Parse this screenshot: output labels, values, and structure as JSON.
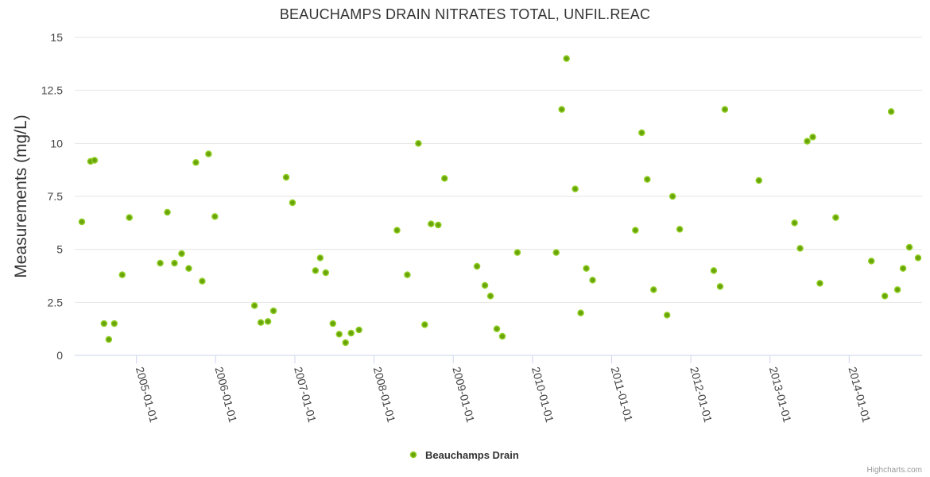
{
  "chart_data": {
    "type": "scatter",
    "title": "BEAUCHAMPS DRAIN NITRATES TOTAL, UNFIL.REAC",
    "xlabel": "",
    "ylabel": "Measurements (mg/L)",
    "ylim": [
      0,
      15
    ],
    "yticks": [
      0,
      2.5,
      5,
      7.5,
      10,
      12.5,
      15
    ],
    "ytick_labels": [
      "0",
      "2.5",
      "5",
      "7.5",
      "10",
      "12.5",
      "15"
    ],
    "xlim": [
      2004.22,
      2014.92
    ],
    "xticks": [
      2005,
      2006,
      2007,
      2008,
      2009,
      2010,
      2011,
      2012,
      2013,
      2014
    ],
    "xtick_labels": [
      "2005-01-01",
      "2006-01-01",
      "2007-01-01",
      "2008-01-01",
      "2009-01-01",
      "2010-01-01",
      "2011-01-01",
      "2012-01-01",
      "2013-01-01",
      "2014-01-01"
    ],
    "legend": "bottom-center",
    "grid": true,
    "series": [
      {
        "name": "Beauchamps Drain",
        "color": "#6aa40a",
        "points": [
          [
            2004.31,
            6.3
          ],
          [
            2004.42,
            9.15
          ],
          [
            2004.47,
            9.2
          ],
          [
            2004.59,
            1.5
          ],
          [
            2004.65,
            0.75
          ],
          [
            2004.72,
            1.5
          ],
          [
            2004.82,
            3.8
          ],
          [
            2004.91,
            6.5
          ],
          [
            2005.3,
            4.35
          ],
          [
            2005.39,
            6.75
          ],
          [
            2005.48,
            4.35
          ],
          [
            2005.57,
            4.8
          ],
          [
            2005.66,
            4.1
          ],
          [
            2005.75,
            9.1
          ],
          [
            2005.83,
            3.5
          ],
          [
            2005.91,
            9.5
          ],
          [
            2005.99,
            6.55
          ],
          [
            2006.49,
            2.35
          ],
          [
            2006.57,
            1.55
          ],
          [
            2006.66,
            1.6
          ],
          [
            2006.73,
            2.1
          ],
          [
            2006.89,
            8.4
          ],
          [
            2006.97,
            7.2
          ],
          [
            2007.26,
            4.0
          ],
          [
            2007.32,
            4.6
          ],
          [
            2007.39,
            3.9
          ],
          [
            2007.48,
            1.5
          ],
          [
            2007.56,
            1.0
          ],
          [
            2007.64,
            0.6
          ],
          [
            2007.71,
            1.05
          ],
          [
            2007.81,
            1.2
          ],
          [
            2008.29,
            5.9
          ],
          [
            2008.42,
            3.8
          ],
          [
            2008.56,
            10.0
          ],
          [
            2008.64,
            1.45
          ],
          [
            2008.72,
            6.2
          ],
          [
            2008.81,
            6.15
          ],
          [
            2008.89,
            8.35
          ],
          [
            2009.3,
            4.2
          ],
          [
            2009.4,
            3.3
          ],
          [
            2009.47,
            2.8
          ],
          [
            2009.55,
            1.25
          ],
          [
            2009.62,
            0.9
          ],
          [
            2009.81,
            4.85
          ],
          [
            2010.3,
            4.85
          ],
          [
            2010.37,
            11.6
          ],
          [
            2010.43,
            14.0
          ],
          [
            2010.54,
            7.85
          ],
          [
            2010.61,
            2.0
          ],
          [
            2010.68,
            4.1
          ],
          [
            2010.76,
            3.55
          ],
          [
            2011.3,
            5.9
          ],
          [
            2011.38,
            10.5
          ],
          [
            2011.45,
            8.3
          ],
          [
            2011.53,
            3.1
          ],
          [
            2011.7,
            1.9
          ],
          [
            2011.77,
            7.5
          ],
          [
            2011.86,
            5.95
          ],
          [
            2012.29,
            4.0
          ],
          [
            2012.37,
            3.25
          ],
          [
            2012.43,
            11.6
          ],
          [
            2012.86,
            8.25
          ],
          [
            2013.31,
            6.25
          ],
          [
            2013.38,
            5.05
          ],
          [
            2013.47,
            10.1
          ],
          [
            2013.54,
            10.3
          ],
          [
            2013.63,
            3.4
          ],
          [
            2013.83,
            6.5
          ],
          [
            2014.28,
            4.45
          ],
          [
            2014.45,
            2.8
          ],
          [
            2014.53,
            11.5
          ],
          [
            2014.61,
            3.1
          ],
          [
            2014.68,
            4.1
          ],
          [
            2014.76,
            5.1
          ],
          [
            2014.87,
            4.6
          ]
        ]
      }
    ]
  },
  "legend": {
    "label": "Beauchamps Drain"
  },
  "credits": "Highcharts.com"
}
